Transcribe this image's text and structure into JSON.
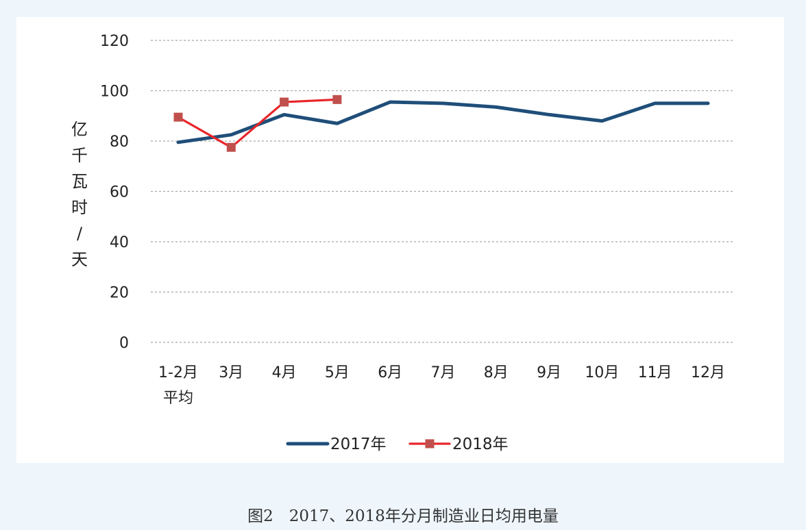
{
  "chart_data": {
    "type": "line",
    "categories": [
      "1-2月\n平均",
      "3月",
      "4月",
      "5月",
      "6月",
      "7月",
      "8月",
      "9月",
      "10月",
      "11月",
      "12月"
    ],
    "series": [
      {
        "name": "2017年",
        "color": "#1f4e79",
        "values": [
          79.5,
          82.5,
          90.5,
          87,
          95.5,
          95,
          93.5,
          90.5,
          88,
          95,
          95
        ]
      },
      {
        "name": "2018年",
        "color": "#e8262a",
        "marker_color": "#c0504d",
        "marker": "square",
        "values": [
          89.5,
          77.5,
          95.5,
          96.5,
          null,
          null,
          null,
          null,
          null,
          null,
          null
        ]
      }
    ],
    "ylabel": "亿千瓦时/天",
    "ylim": [
      0,
      120
    ],
    "yticks": [
      0,
      20,
      40,
      60,
      80,
      100,
      120
    ],
    "grid": "horizontal dashed",
    "legend": "bottom-center"
  },
  "caption": "图2　2017、2018年分月制造业日均用电量"
}
